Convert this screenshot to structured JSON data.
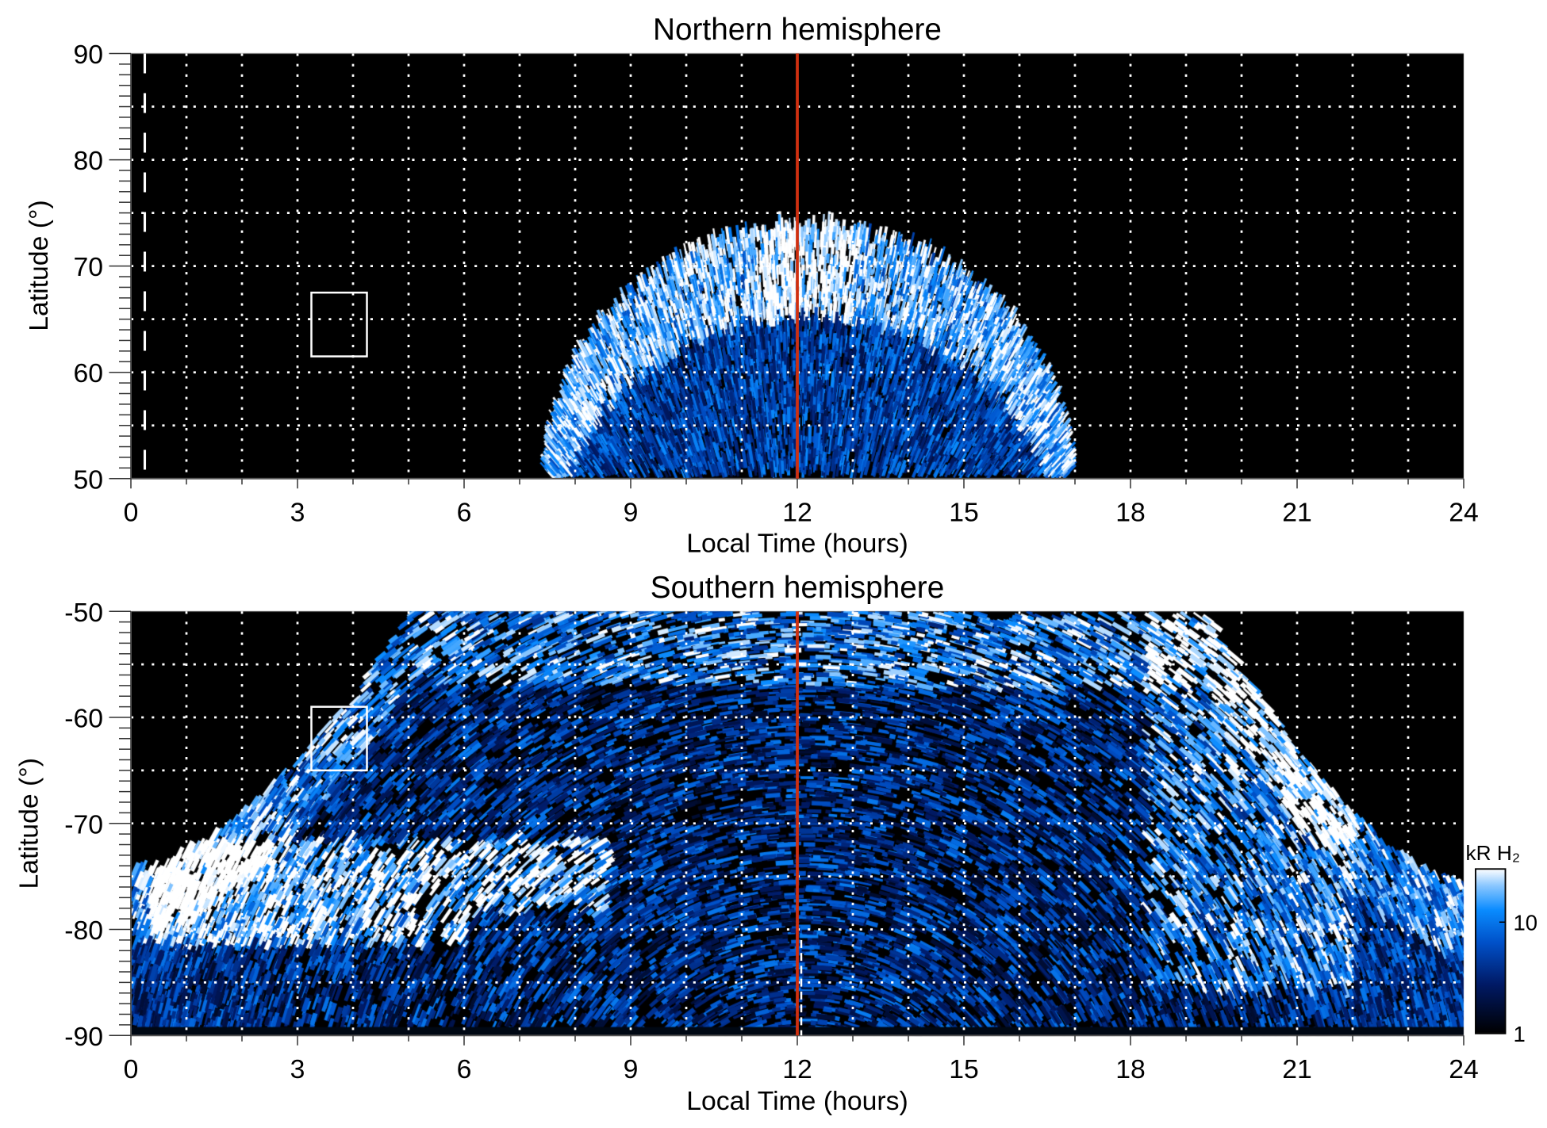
{
  "chart_data": {
    "type": "heatmap",
    "panels": [
      {
        "title": "Northern hemisphere",
        "xlabel": "Local Time (hours)",
        "ylabel": "Latitude (°)",
        "xlim": [
          0,
          24
        ],
        "ylim": [
          50,
          90
        ],
        "xticks": [
          "0",
          "3",
          "6",
          "9",
          "12",
          "15",
          "18",
          "21",
          "24"
        ],
        "yticks": [
          "90",
          "80",
          "70",
          "60",
          "50"
        ],
        "ytick_values": [
          90,
          80,
          70,
          60,
          50
        ],
        "grid": true,
        "marker_line_lt": 12,
        "marker_line_color": "#d03010",
        "dashed_line_lt": 0.25,
        "box": {
          "lt": [
            3.25,
            4.25
          ],
          "lat": [
            61.5,
            67.5
          ]
        }
      },
      {
        "title": "Southern hemisphere",
        "xlabel": "Local Time (hours)",
        "ylabel": "Latitude (°)",
        "xlim": [
          0,
          24
        ],
        "ylim": [
          -90,
          -50
        ],
        "xticks": [
          "0",
          "3",
          "6",
          "9",
          "12",
          "15",
          "18",
          "21",
          "24"
        ],
        "yticks": [
          "-50",
          "-60",
          "-70",
          "-80",
          "-90"
        ],
        "ytick_values": [
          -50,
          -60,
          -70,
          -80,
          -90
        ],
        "grid": true,
        "marker_line_lt": 12,
        "marker_line_color": "#d03010",
        "box": {
          "lt": [
            3.25,
            4.25
          ],
          "lat": [
            -59,
            -65
          ]
        }
      }
    ],
    "colorbar": {
      "label": "kR H₂",
      "scale": "log",
      "range": [
        1,
        30
      ],
      "ticks": [
        "10",
        "1"
      ],
      "tick_values": [
        10,
        1
      ],
      "colors": [
        "#000000",
        "#001a66",
        "#0050c8",
        "#0a8cff",
        "#8cc8ff",
        "#ffffff"
      ]
    }
  }
}
